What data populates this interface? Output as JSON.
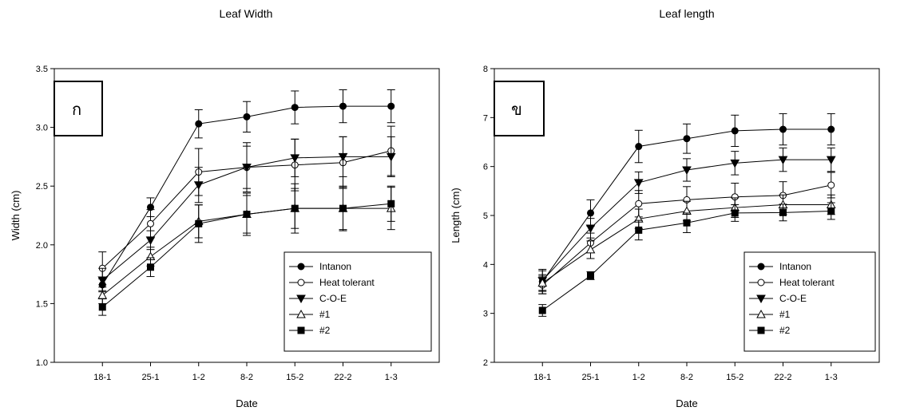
{
  "chart_data": [
    {
      "type": "line",
      "title": "Leaf Width",
      "panel_label": "ก",
      "xlabel": "Date",
      "ylabel": "Width (cm)",
      "categories": [
        "18-1",
        "25-1",
        "1-2",
        "8-2",
        "15-2",
        "22-2",
        "1-3"
      ],
      "ylim": [
        1.0,
        3.5
      ],
      "yticks": [
        "1.0",
        "1.5",
        "2.0",
        "2.5",
        "3.0",
        "3.5"
      ],
      "grid": false,
      "legend_position": "lower-right",
      "series": [
        {
          "name": "Intanon",
          "marker": "circle-filled",
          "values": [
            1.66,
            2.32,
            3.03,
            3.09,
            3.17,
            3.18,
            3.18
          ],
          "errors": [
            0.05,
            0.08,
            0.12,
            0.13,
            0.14,
            0.14,
            0.14
          ]
        },
        {
          "name": "Heat tolerant",
          "marker": "circle-open",
          "values": [
            1.8,
            2.18,
            2.62,
            2.66,
            2.68,
            2.7,
            2.8
          ],
          "errors": [
            0.14,
            0.12,
            0.2,
            0.21,
            0.22,
            0.22,
            0.21
          ]
        },
        {
          "name": "C-O-E",
          "marker": "triangle-down-filled",
          "values": [
            1.7,
            2.04,
            2.51,
            2.66,
            2.74,
            2.75,
            2.75
          ],
          "errors": [
            0.1,
            0.08,
            0.15,
            0.18,
            0.16,
            0.17,
            0.17
          ]
        },
        {
          "name": "#1",
          "marker": "triangle-up-open",
          "values": [
            1.57,
            1.9,
            2.2,
            2.26,
            2.31,
            2.31,
            2.31
          ],
          "errors": [
            0.07,
            0.08,
            0.14,
            0.16,
            0.17,
            0.18,
            0.18
          ]
        },
        {
          "name": "#2",
          "marker": "square-filled",
          "values": [
            1.47,
            1.81,
            2.18,
            2.26,
            2.31,
            2.31,
            2.35
          ],
          "errors": [
            0.07,
            0.08,
            0.16,
            0.18,
            0.21,
            0.19,
            0.15
          ]
        }
      ]
    },
    {
      "type": "line",
      "title": "Leaf length",
      "panel_label": "ข",
      "xlabel": "Date",
      "ylabel": "Length (cm)",
      "categories": [
        "18-1",
        "25-1",
        "1-2",
        "8-2",
        "15-2",
        "22-2",
        "1-3"
      ],
      "ylim": [
        2,
        8
      ],
      "yticks": [
        "2",
        "3",
        "4",
        "5",
        "6",
        "7",
        "8"
      ],
      "grid": false,
      "legend_position": "lower-right",
      "series": [
        {
          "name": "Intanon",
          "marker": "circle-filled",
          "values": [
            3.65,
            5.05,
            6.41,
            6.57,
            6.73,
            6.76,
            6.76
          ],
          "errors": [
            0.25,
            0.27,
            0.33,
            0.3,
            0.32,
            0.32,
            0.32
          ]
        },
        {
          "name": "Heat tolerant",
          "marker": "circle-open",
          "values": [
            3.58,
            4.44,
            5.24,
            5.32,
            5.38,
            5.41,
            5.62
          ],
          "errors": [
            0.18,
            0.2,
            0.27,
            0.27,
            0.28,
            0.28,
            0.26
          ]
        },
        {
          "name": "C-O-E",
          "marker": "triangle-down-filled",
          "values": [
            3.67,
            4.74,
            5.67,
            5.93,
            6.07,
            6.14,
            6.14
          ],
          "errors": [
            0.2,
            0.2,
            0.22,
            0.23,
            0.24,
            0.24,
            0.24
          ]
        },
        {
          "name": "#1",
          "marker": "triangle-up-open",
          "values": [
            3.62,
            4.3,
            4.93,
            5.09,
            5.16,
            5.22,
            5.22
          ],
          "errors": [
            0.17,
            0.18,
            0.2,
            0.2,
            0.2,
            0.2,
            0.2
          ]
        },
        {
          "name": "#2",
          "marker": "square-filled",
          "values": [
            3.06,
            3.77,
            4.7,
            4.85,
            5.05,
            5.06,
            5.09
          ],
          "errors": [
            0.12,
            0.08,
            0.2,
            0.2,
            0.17,
            0.17,
            0.17
          ]
        }
      ]
    }
  ]
}
